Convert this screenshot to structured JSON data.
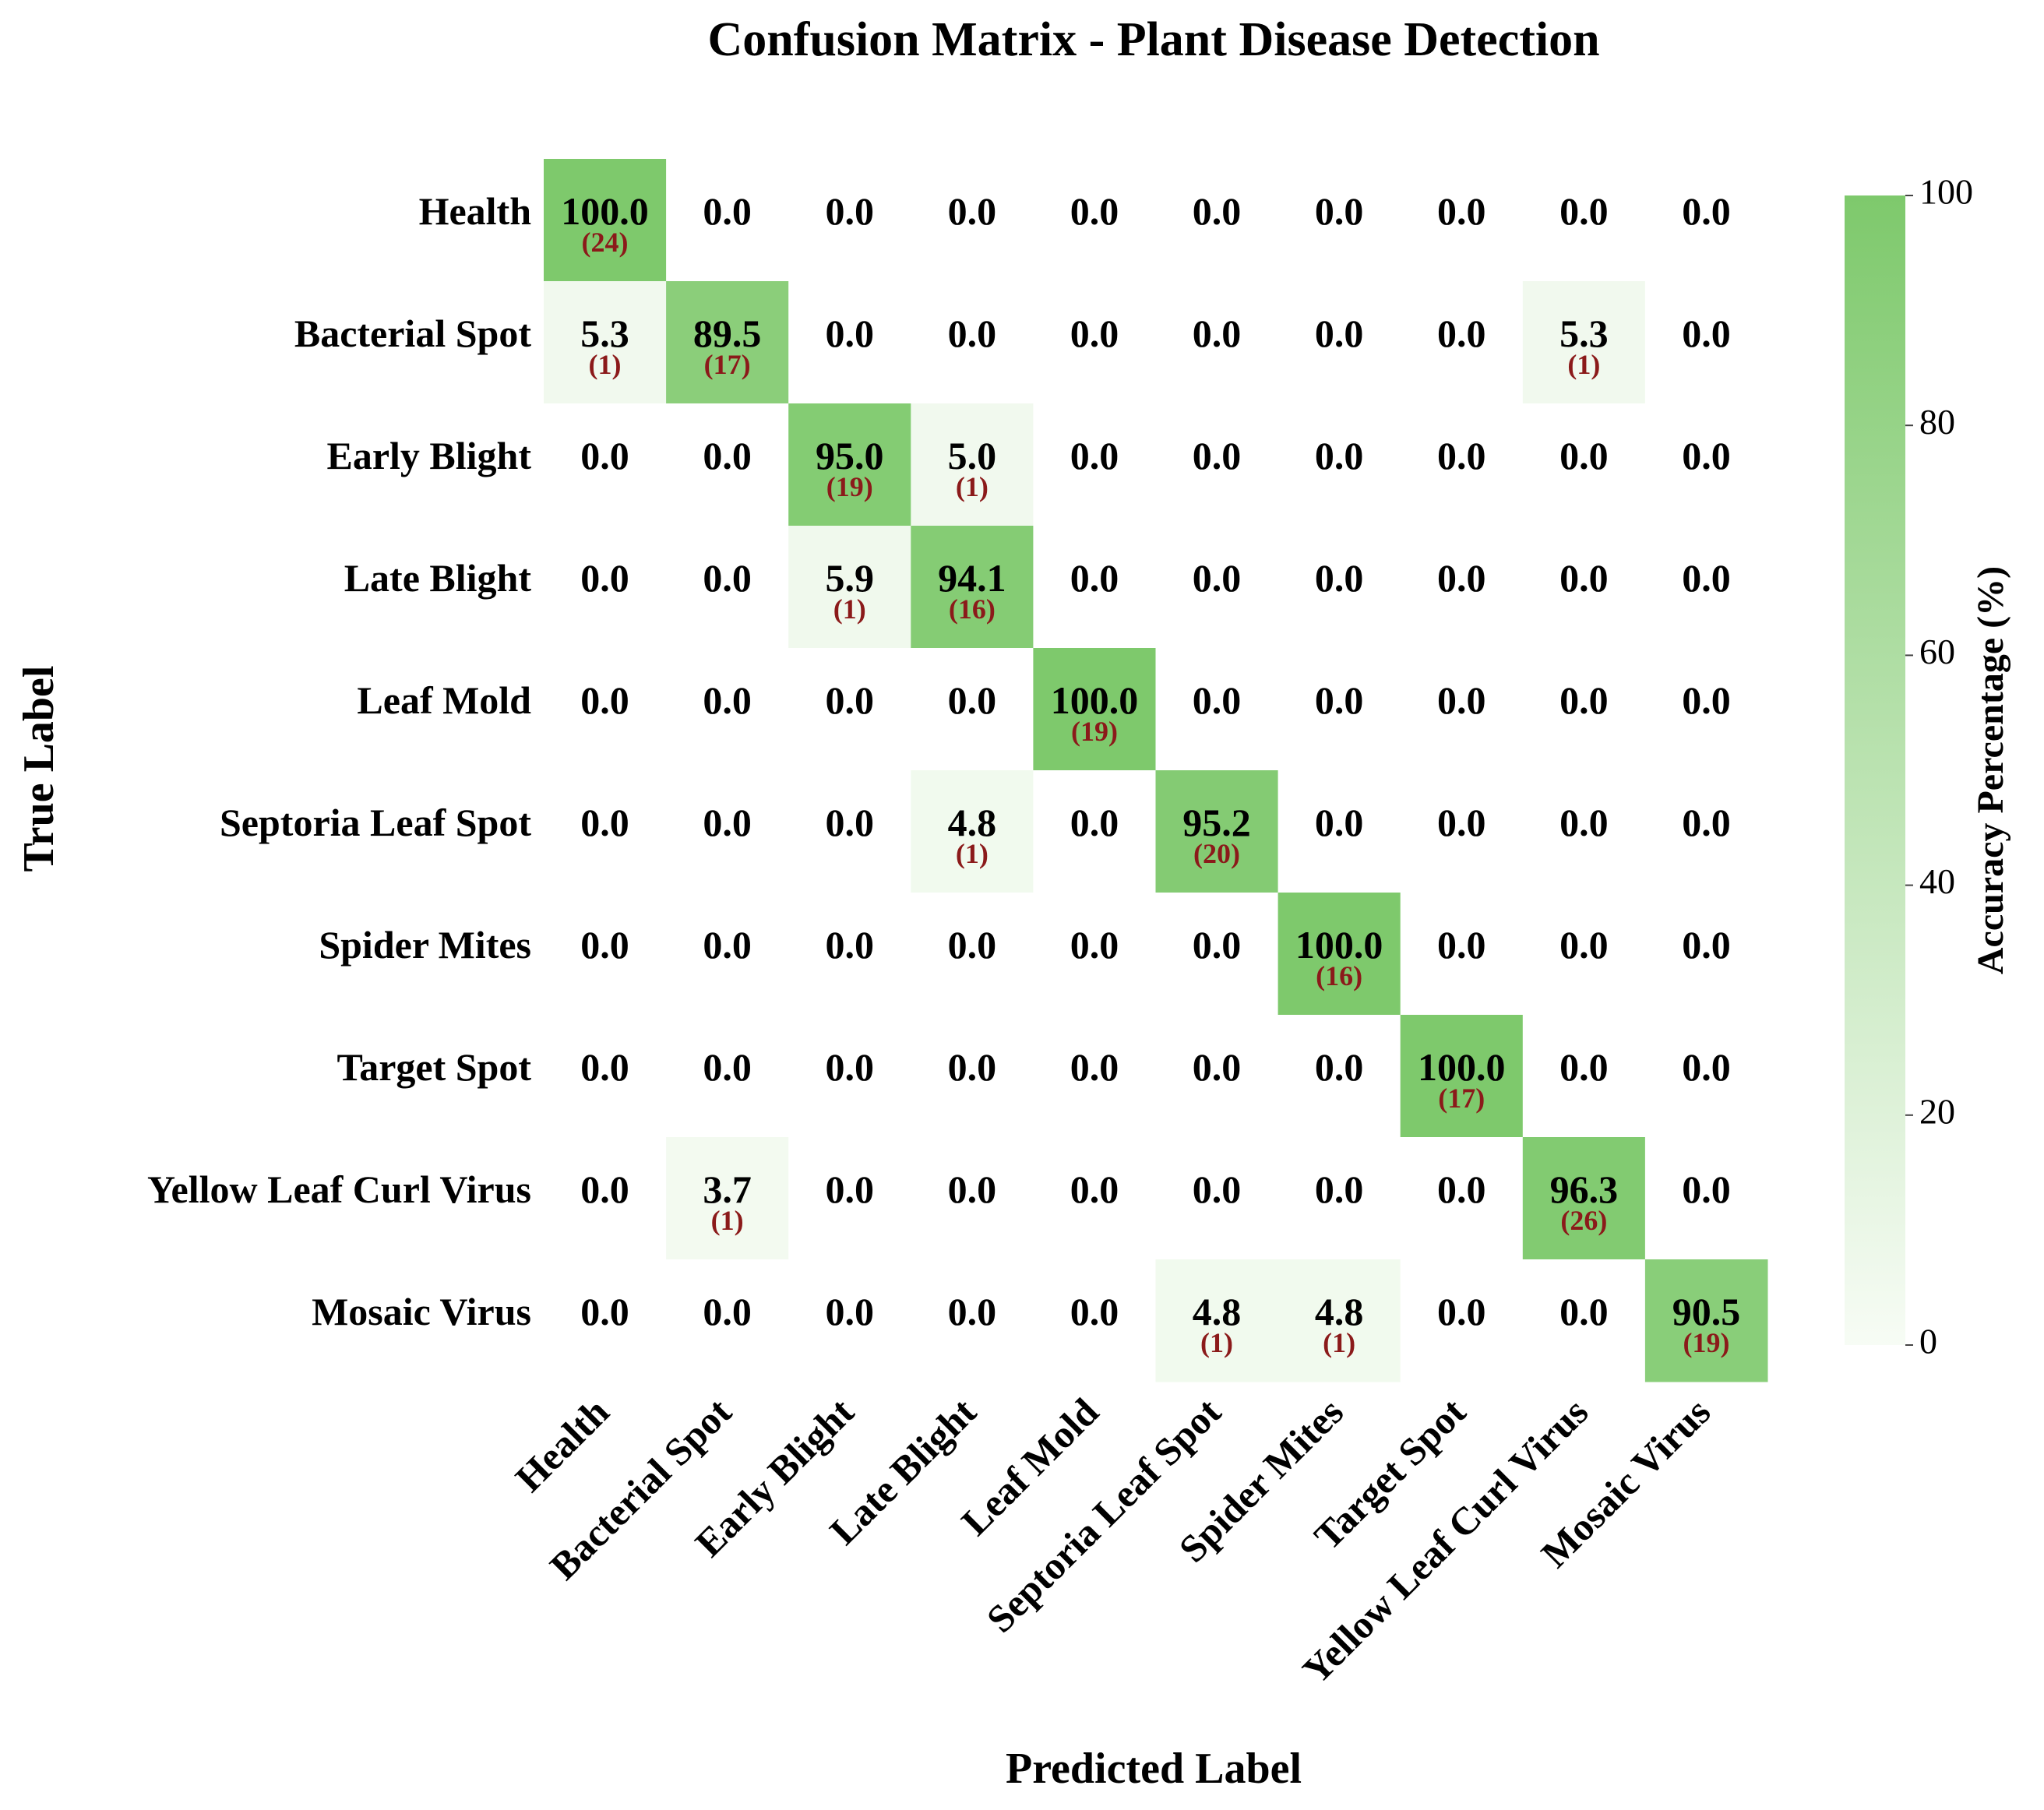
{
  "chart_data": {
    "type": "heatmap",
    "title": "Confusion Matrix - Plant Disease Detection",
    "xlabel": "Predicted Label",
    "ylabel": "True Label",
    "x_categories": [
      "Health",
      "Bacterial Spot",
      "Early Blight",
      "Late Blight",
      "Leaf Mold",
      "Septoria Leaf Spot",
      "Spider Mites",
      "Target Spot",
      "Yellow Leaf Curl Virus",
      "Mosaic Virus"
    ],
    "y_categories": [
      "Health",
      "Bacterial Spot",
      "Early Blight",
      "Late Blight",
      "Leaf Mold",
      "Septoria Leaf Spot",
      "Spider Mites",
      "Target Spot",
      "Yellow Leaf Curl Virus",
      "Mosaic Virus"
    ],
    "values": [
      [
        100,
        0,
        0,
        0,
        0,
        0,
        0,
        0,
        0,
        0
      ],
      [
        5.3,
        89.5,
        0,
        0,
        0,
        0,
        0,
        0,
        5.3,
        0
      ],
      [
        0,
        0,
        95,
        5,
        0,
        0,
        0,
        0,
        0,
        0
      ],
      [
        0,
        0,
        5.9,
        94.1,
        0,
        0,
        0,
        0,
        0,
        0
      ],
      [
        0,
        0,
        0,
        0,
        100,
        0,
        0,
        0,
        0,
        0
      ],
      [
        0,
        0,
        0,
        4.8,
        0,
        95.2,
        0,
        0,
        0,
        0
      ],
      [
        0,
        0,
        0,
        0,
        0,
        0,
        100,
        0,
        0,
        0
      ],
      [
        0,
        0,
        0,
        0,
        0,
        0,
        0,
        100,
        0,
        0
      ],
      [
        0,
        3.7,
        0,
        0,
        0,
        0,
        0,
        0,
        96.3,
        0
      ],
      [
        0,
        0,
        0,
        0,
        0,
        4.8,
        4.8,
        0,
        0,
        90.5
      ]
    ],
    "value_labels": [
      [
        "100.0",
        "0.0",
        "0.0",
        "0.0",
        "0.0",
        "0.0",
        "0.0",
        "0.0",
        "0.0",
        "0.0"
      ],
      [
        "5.3",
        "89.5",
        "0.0",
        "0.0",
        "0.0",
        "0.0",
        "0.0",
        "0.0",
        "5.3",
        "0.0"
      ],
      [
        "0.0",
        "0.0",
        "95.0",
        "5.0",
        "0.0",
        "0.0",
        "0.0",
        "0.0",
        "0.0",
        "0.0"
      ],
      [
        "0.0",
        "0.0",
        "5.9",
        "94.1",
        "0.0",
        "0.0",
        "0.0",
        "0.0",
        "0.0",
        "0.0"
      ],
      [
        "0.0",
        "0.0",
        "0.0",
        "0.0",
        "100.0",
        "0.0",
        "0.0",
        "0.0",
        "0.0",
        "0.0"
      ],
      [
        "0.0",
        "0.0",
        "0.0",
        "4.8",
        "0.0",
        "95.2",
        "0.0",
        "0.0",
        "0.0",
        "0.0"
      ],
      [
        "0.0",
        "0.0",
        "0.0",
        "0.0",
        "0.0",
        "0.0",
        "100.0",
        "0.0",
        "0.0",
        "0.0"
      ],
      [
        "0.0",
        "0.0",
        "0.0",
        "0.0",
        "0.0",
        "0.0",
        "0.0",
        "100.0",
        "0.0",
        "0.0"
      ],
      [
        "0.0",
        "3.7",
        "0.0",
        "0.0",
        "0.0",
        "0.0",
        "0.0",
        "0.0",
        "96.3",
        "0.0"
      ],
      [
        "0.0",
        "0.0",
        "0.0",
        "0.0",
        "0.0",
        "4.8",
        "4.8",
        "0.0",
        "0.0",
        "90.5"
      ]
    ],
    "counts": [
      [
        24,
        null,
        null,
        null,
        null,
        null,
        null,
        null,
        null,
        null
      ],
      [
        1,
        17,
        null,
        null,
        null,
        null,
        null,
        null,
        1,
        null
      ],
      [
        null,
        null,
        19,
        1,
        null,
        null,
        null,
        null,
        null,
        null
      ],
      [
        null,
        null,
        1,
        16,
        null,
        null,
        null,
        null,
        null,
        null
      ],
      [
        null,
        null,
        null,
        null,
        19,
        null,
        null,
        null,
        null,
        null
      ],
      [
        null,
        null,
        null,
        1,
        null,
        20,
        null,
        null,
        null,
        null
      ],
      [
        null,
        null,
        null,
        null,
        null,
        null,
        16,
        null,
        null,
        null
      ],
      [
        null,
        null,
        null,
        null,
        null,
        null,
        null,
        17,
        null,
        null
      ],
      [
        null,
        1,
        null,
        null,
        null,
        null,
        null,
        null,
        26,
        null
      ],
      [
        null,
        null,
        null,
        null,
        null,
        1,
        1,
        null,
        null,
        19
      ]
    ],
    "count_labels": [
      [
        "(24)",
        null,
        null,
        null,
        null,
        null,
        null,
        null,
        null,
        null
      ],
      [
        "(1)",
        "(17)",
        null,
        null,
        null,
        null,
        null,
        null,
        "(1)",
        null
      ],
      [
        null,
        null,
        "(19)",
        "(1)",
        null,
        null,
        null,
        null,
        null,
        null
      ],
      [
        null,
        null,
        "(1)",
        "(16)",
        null,
        null,
        null,
        null,
        null,
        null
      ],
      [
        null,
        null,
        null,
        null,
        "(19)",
        null,
        null,
        null,
        null,
        null
      ],
      [
        null,
        null,
        null,
        "(1)",
        null,
        "(20)",
        null,
        null,
        null,
        null
      ],
      [
        null,
        null,
        null,
        null,
        null,
        null,
        "(16)",
        null,
        null,
        null
      ],
      [
        null,
        null,
        null,
        null,
        null,
        null,
        null,
        "(17)",
        null,
        null
      ],
      [
        null,
        "(1)",
        null,
        null,
        null,
        null,
        null,
        null,
        "(26)",
        null
      ],
      [
        null,
        null,
        null,
        null,
        null,
        "(1)",
        "(1)",
        null,
        null,
        "(19)"
      ]
    ],
    "colorbar_label": "Accuracy Percentage (%)",
    "zlim": [
      0,
      100
    ],
    "zticks": [
      0,
      20,
      40,
      60,
      80,
      100
    ],
    "colors": [
      "#f7fcf5",
      "#7ec96c"
    ],
    "count_color": "#8b1a1a"
  }
}
